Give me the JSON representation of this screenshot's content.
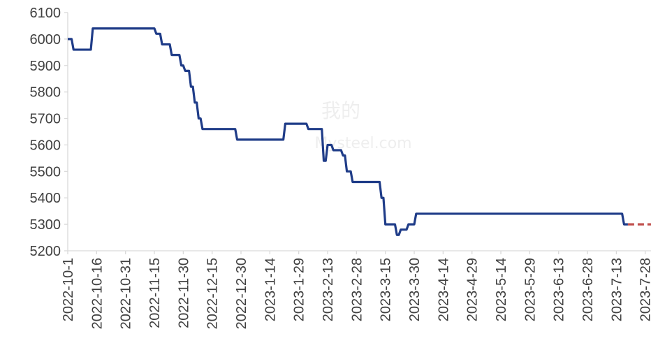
{
  "chart_data": {
    "type": "line",
    "title": "",
    "xlabel": "",
    "ylabel": "",
    "ylim": [
      5200,
      6100
    ],
    "yticks": [
      5200,
      5300,
      5400,
      5500,
      5600,
      5700,
      5800,
      5900,
      6000,
      6100
    ],
    "xlim": [
      "2022-10-01",
      "2023-07-31"
    ],
    "xticks": [
      "2022-10-1",
      "2022-10-16",
      "2022-10-31",
      "2022-11-15",
      "2022-11-30",
      "2022-12-15",
      "2022-12-30",
      "2023-1-14",
      "2023-1-29",
      "2023-2-13",
      "2023-2-28",
      "2023-3-15",
      "2023-3-30",
      "2023-4-14",
      "2023-4-29",
      "2023-5-14",
      "2023-5-29",
      "2023-6-13",
      "2023-6-28",
      "2023-7-13",
      "2023-7-28"
    ],
    "grid": false,
    "legend": "none",
    "series": [
      {
        "color": "#1f3c88",
        "style": "solid",
        "points": [
          [
            "2022-10-01",
            6000
          ],
          [
            "2022-10-03",
            6000
          ],
          [
            "2022-10-04",
            5960
          ],
          [
            "2022-10-13",
            5960
          ],
          [
            "2022-10-14",
            6040
          ],
          [
            "2022-11-15",
            6040
          ],
          [
            "2022-11-16",
            6020
          ],
          [
            "2022-11-18",
            6020
          ],
          [
            "2022-11-19",
            5980
          ],
          [
            "2022-11-23",
            5980
          ],
          [
            "2022-11-24",
            5940
          ],
          [
            "2022-11-28",
            5940
          ],
          [
            "2022-11-29",
            5900
          ],
          [
            "2022-11-30",
            5900
          ],
          [
            "2022-12-01",
            5880
          ],
          [
            "2022-12-03",
            5880
          ],
          [
            "2022-12-04",
            5820
          ],
          [
            "2022-12-05",
            5820
          ],
          [
            "2022-12-06",
            5760
          ],
          [
            "2022-12-07",
            5760
          ],
          [
            "2022-12-08",
            5700
          ],
          [
            "2022-12-09",
            5700
          ],
          [
            "2022-12-10",
            5660
          ],
          [
            "2022-12-27",
            5660
          ],
          [
            "2022-12-28",
            5620
          ],
          [
            "2023-01-21",
            5620
          ],
          [
            "2023-01-22",
            5680
          ],
          [
            "2023-02-02",
            5680
          ],
          [
            "2023-02-03",
            5660
          ],
          [
            "2023-02-10",
            5660
          ],
          [
            "2023-02-11",
            5540
          ],
          [
            "2023-02-12",
            5540
          ],
          [
            "2023-02-13",
            5600
          ],
          [
            "2023-02-15",
            5600
          ],
          [
            "2023-02-16",
            5580
          ],
          [
            "2023-02-20",
            5580
          ],
          [
            "2023-02-21",
            5560
          ],
          [
            "2023-02-22",
            5560
          ],
          [
            "2023-02-23",
            5500
          ],
          [
            "2023-02-25",
            5500
          ],
          [
            "2023-02-26",
            5460
          ],
          [
            "2023-03-12",
            5460
          ],
          [
            "2023-03-13",
            5400
          ],
          [
            "2023-03-14",
            5400
          ],
          [
            "2023-03-15",
            5300
          ],
          [
            "2023-03-20",
            5300
          ],
          [
            "2023-03-21",
            5260
          ],
          [
            "2023-03-22",
            5260
          ],
          [
            "2023-03-23",
            5280
          ],
          [
            "2023-03-26",
            5280
          ],
          [
            "2023-03-27",
            5300
          ],
          [
            "2023-03-30",
            5300
          ],
          [
            "2023-03-31",
            5340
          ],
          [
            "2023-07-16",
            5340
          ],
          [
            "2023-07-17",
            5300
          ],
          [
            "2023-07-19",
            5300
          ]
        ]
      },
      {
        "color": "#c0504d",
        "style": "dashed",
        "points": [
          [
            "2023-07-19",
            5300
          ],
          [
            "2023-07-31",
            5300
          ]
        ]
      }
    ]
  },
  "watermark": {
    "line1": "我的",
    "line2": "Mysteel.com"
  }
}
